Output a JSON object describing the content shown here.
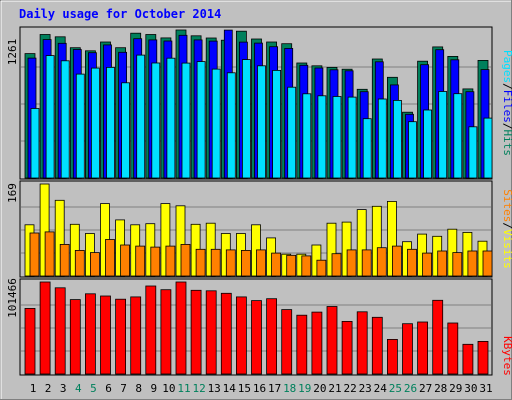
{
  "chart_data": {
    "type": "bar",
    "title": "Daily usage for October 2014",
    "days": [
      "1",
      "2",
      "3",
      "4",
      "5",
      "6",
      "7",
      "8",
      "9",
      "10",
      "11",
      "12",
      "13",
      "14",
      "15",
      "16",
      "17",
      "18",
      "19",
      "20",
      "21",
      "22",
      "23",
      "24",
      "25",
      "26",
      "27",
      "28",
      "29",
      "30",
      "31"
    ],
    "weekend_days": [
      "4",
      "5",
      "11",
      "12",
      "18",
      "19",
      "25",
      "26"
    ],
    "panels": [
      {
        "id": "top",
        "max_label": "1261",
        "ylim": [
          0,
          1261
        ],
        "series": [
          {
            "name": "Hits",
            "color": "#00805c",
            "values": [
              1060,
              1223,
              1203,
              1110,
              1084,
              1159,
              1110,
              1234,
              1223,
              1194,
              1261,
              1212,
              1193,
              1174,
              1251,
              1184,
              1159,
              1144,
              980,
              956,
              942,
              927,
              756,
              1014,
              858,
              561,
              995,
              1117,
              1036,
              759,
              1002
            ]
          },
          {
            "name": "Files",
            "color": "#0000ff",
            "values": [
              1022,
              1179,
              1148,
              1095,
              1068,
              1134,
              1071,
              1187,
              1177,
              1167,
              1216,
              1177,
              1166,
              1260,
              1158,
              1149,
              1119,
              1104,
              960,
              937,
              922,
              913,
              735,
              990,
              793,
              543,
              965,
              1093,
              1007,
              735,
              924
            ]
          },
          {
            "name": "Pages",
            "color": "#00e0ff",
            "values": [
              592,
              1043,
              999,
              885,
              936,
              942,
              811,
              1047,
              980,
              1021,
              979,
              992,
              928,
              896,
              1009,
              956,
              917,
              774,
              717,
              700,
              694,
              689,
              505,
              673,
              661,
              480,
              579,
              737,
              718,
              436,
              510
            ]
          }
        ]
      },
      {
        "id": "middle",
        "max_label": "169",
        "ylim": [
          0,
          169
        ],
        "series": [
          {
            "name": "Visits",
            "color": "#ffff00",
            "values": [
              94,
              169,
              139,
              95,
              78,
              133,
              103,
              94,
              96,
              133,
              129,
              95,
              97,
              78,
              78,
              94,
              70,
              40,
              40,
              57,
              97,
              99,
              122,
              128,
              137,
              63,
              77,
              73,
              86,
              80,
              64
            ]
          },
          {
            "name": "Sites",
            "color": "#ff8000",
            "values": [
              79,
              81,
              58,
              47,
              43,
              67,
              57,
              55,
              53,
              55,
              58,
              49,
              49,
              48,
              47,
              48,
              42,
              38,
              37,
              29,
              41,
              48,
              48,
              52,
              55,
              49,
              42,
              46,
              43,
              46,
              46
            ]
          }
        ]
      },
      {
        "id": "bottom",
        "max_label": "101466",
        "ylim": [
          0,
          101466
        ],
        "series": [
          {
            "name": "KBytes",
            "color": "#ff0000",
            "values": [
              72300,
              101466,
              95100,
              82000,
              88500,
              86000,
              82500,
              85000,
              97000,
              93000,
              101466,
              92300,
              91800,
              89000,
              85000,
              81000,
              83000,
              71000,
              64800,
              68300,
              74400,
              58000,
              68600,
              62500,
              38200,
              55500,
              57400,
              81300,
              56200,
              32800,
              35900
            ]
          }
        ]
      }
    ],
    "legends": {
      "top": [
        "Pages",
        "/",
        "Files",
        "/",
        "Hits"
      ],
      "middle": [
        "Sites",
        "/",
        "Visits"
      ],
      "bottom": [
        "KBytes"
      ]
    }
  },
  "colors": {
    "background": "#c0c0c0",
    "plot_bg": "#c0c0c0",
    "title": "#0000ff",
    "weekday_label": "#000000",
    "weekend_label": "#00805c",
    "legend_slash": "#000000"
  }
}
